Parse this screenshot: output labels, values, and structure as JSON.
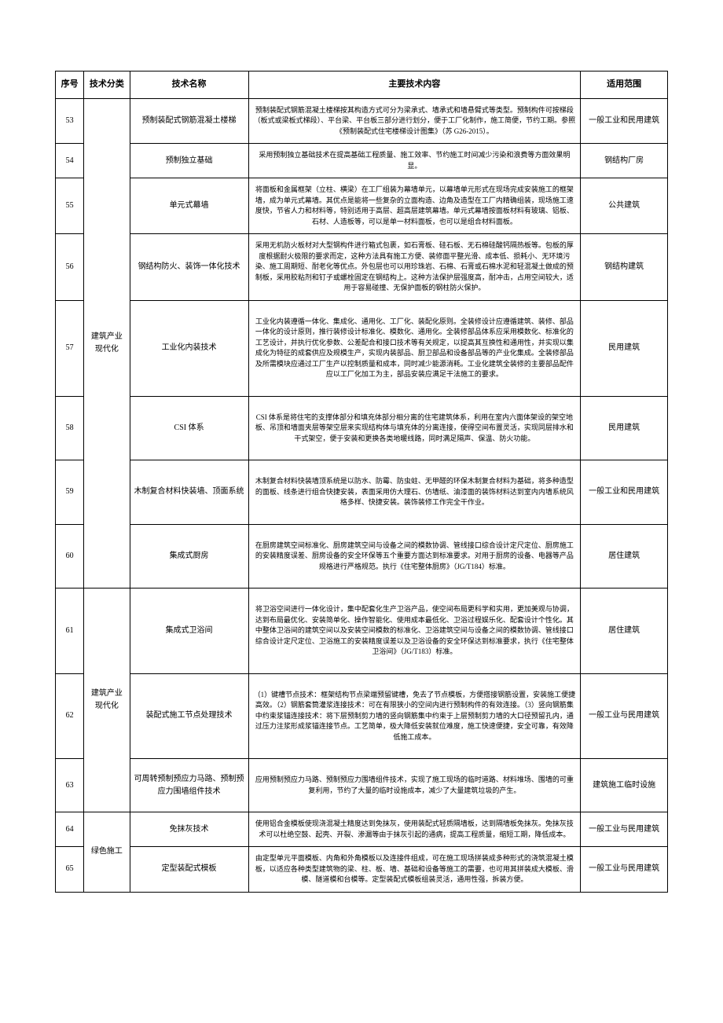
{
  "columns": {
    "seq": "序号",
    "category": "技术分类",
    "name": "技术名称",
    "content": "主要技术内容",
    "scope": "适用范围"
  },
  "categories": {
    "cat1": "建筑产业现代化",
    "cat2": "建筑产业现代化",
    "cat3": "绿色施工"
  },
  "rows": {
    "r53": {
      "seq": "53",
      "name": "预制装配式钢筋混凝土楼梯",
      "content": "预制装配式钢筋混凝土楼梯按其构造方式可分为梁承式、墙承式和墙悬臂式等类型。预制构件可按梯段（板式或梁板式梯段）、平台梁、平台板三部分进行划分，便于工厂化制作，施工简便，节约工期。参照《预制装配式住宅楼梯设计图集》（苏 G26-2015）。",
      "scope": "一般工业和民用建筑"
    },
    "r54": {
      "seq": "54",
      "name": "预制独立基础",
      "content": "采用预制独立基础技术在提高基础工程质量、施工效率、节约施工时间减少污染和浪费等方面效果明显。",
      "scope": "钢结构厂房"
    },
    "r55": {
      "seq": "55",
      "name": "单元式幕墙",
      "content": "将面板和金属框架（立柱、横梁）在工厂组装为幕墙单元，以幕墙单元形式在现场完成安装施工的框架墙，成为单元式幕墙。其优点是能将一些复杂的立面构造、边角及造型在工厂内精确组装，现场施工速度快，节省人力和材料等，特别适用于高层、超高层建筑幕墙。单元式幕墙按面板材料有玻璃、铝板、石材、人造板等，可以是单一材料面板，也可以是组合材料面板。",
      "scope": "公共建筑"
    },
    "r56": {
      "seq": "56",
      "name": "钢结构防火、装饰一体化技术",
      "content": "采用无机防火板材对大型钢构件进行箱式包裹，如石膏板、硅石板、无石棉硅酸钙隔热板等。包板的厚度根据耐火极限的要求而定，这种方法具有施工方便、装修面平整光滑、成本低、损耗小、无环境污染、施工周期短、耐老化等优点。外包层也可以用珍珠岩、石棉、石膏或石棉水泥和轻混凝土做成的预制板，采用胶粘剂和钉子或螺栓固定在钢结构上。这种方法保护层强度高，耐冲击，占用空间较大，适用于容易碰撞、无保护面板的钢柱防火保护。",
      "scope": "钢结构建筑"
    },
    "r57": {
      "seq": "57",
      "name": "工业化内装技术",
      "content": "工业化内装遵循一体化、集成化、通用化、工厂化、装配化原则。全装修设计应遵循建筑、装修、部品一体化的设计原则，推行装修设计标准化、模数化、通用化。全装修部品体系应采用模数化、标准化的工艺设计，并执行优化参数、公差配合和接口技术等有关规定，以提高其互换性和通用性，并实现以集成化为特征的成套供应及规模生产，实现内装部品、厨卫部品和设备部品等的产业化集成。全装修部品及所需模块应通过工厂生产以控制质量和成本，同时减少能源消耗。工业化建筑全装修的主要部品配件应以工厂化加工为主，部品安装应满足干法施工的要求。",
      "scope": "民用建筑"
    },
    "r58": {
      "seq": "58",
      "name": "CSI 体系",
      "content": "CSI 体系是将住宅的支撑体部分和填充体部分相分离的住宅建筑体系，利用在室内六面体架设的架空地板、吊顶和墙面夹层等架空层来实现结构体与填充体的分离连接，使得空间布置灵活，实现同层排水和干式架空，便于安装和更换各类地暖线路，同时满足隔声、保温、防火功能。",
      "scope": "民用建筑"
    },
    "r59": {
      "seq": "59",
      "name": "木制复合材料快装墙、顶面系统",
      "content": "木制复合材料快装墙顶系统是以防水、防霉、防虫蛀、无甲醛的环保木制复合材料为基础，将多种造型的面板、线条进行组合快捷安装，表面采用仿大理石、仿墙纸、油漆面的装饰材料达到室内内墙系统风格多样、快捷安装。装饰装修工作完全干作业。",
      "scope": "一般工业和民用建筑"
    },
    "r60": {
      "seq": "60",
      "name": "集成式厨房",
      "content": "在厨房建筑空间标准化、厨房建筑空间与设备之间的模数协调、管线接口综合设计定尺定位、厨房施工的安装精度误差、厨房设备的安全环保等五个重要方面达到标准要求。对用于厨房的设备、电器等产品规格进行严格规范。执行《住宅整体厨房》（JG/T184）标准。",
      "scope": "居住建筑"
    },
    "r61": {
      "seq": "61",
      "name": "集成式卫浴间",
      "content": "将卫浴空间进行一体化设计，集中配套化生产卫浴产品，使空间布局更科学和实用，更加美观与协调，达到布局最优化、安装简单化、操作智能化、使用成本最低化、卫浴过程娱乐化、配套设计个性化。其中整体卫浴间的建筑空间以及安装空间模数的标准化、卫浴建筑空间与设备之间的模数协调、管线接口综合设计定尺定位、卫浴施工的安装精度误差以及卫浴设备的安全环保达到标准要求，执行《住宅整体卫浴间》（JG/T183）标准。",
      "scope": "居住建筑"
    },
    "r62": {
      "seq": "62",
      "name": "装配式施工节点处理技术",
      "content": "（1）键槽节点技术：框架结构节点梁端预留键槽，免去了节点模板，方便搭接钢筋设置，安装施工便捷高效。（2）钢筋套筒灌浆连接技术：可在有限狭小的空间内进行预制构件的有效连接。（3）竖向钢筋集中约束浆锚连接技术：将下层预制剪力墙的竖向钢筋集中约束于上层预制剪力墙的大口径预留孔内，通过压力注浆形成浆锚连接节点。工艺简单，极大降低安装就位难度，施工快速便捷，安全可靠，有效降低施工成本。",
      "scope": "一般工业与民用建筑"
    },
    "r63": {
      "seq": "63",
      "name": "可周转预制预应力马路、预制预应力围墙组件技术",
      "content": "应用预制预应力马路、预制预应力围墙组件技术，实现了施工现场的临时道路、材料堆场、围墙的可重复利用，节约了大量的临时设施成本，减少了大量建筑垃圾的产生。",
      "scope": "建筑施工临时设施"
    },
    "r64": {
      "seq": "64",
      "name": "免抹灰技术",
      "content": "使用铝合金模板使现浇混凝土精度达到免抹灰，使用装配式轻质隔墙板，达到隔墙板免抹灰。免抹灰技术可以杜绝空鼓、起壳、开裂、渗漏等由于抹灰引起的通病，提高工程质量，缩短工期，降低成本。",
      "scope": "一般工业与民用建筑"
    },
    "r65": {
      "seq": "65",
      "name": "定型装配式模板",
      "content": "由定型单元平面模板、内角和外角模板以及连接件组成，可在施工现场拼装成多种形式的浇筑混凝土模板，以适应各种类型建筑物的梁、柱、板、墙、基础和设备等施工的需要，也可用其拼装成大模板、滑模、隧道模和台模等。定型装配式模板组装灵活，通用性强，拆装方便。",
      "scope": "一般工业与民用建筑"
    }
  }
}
